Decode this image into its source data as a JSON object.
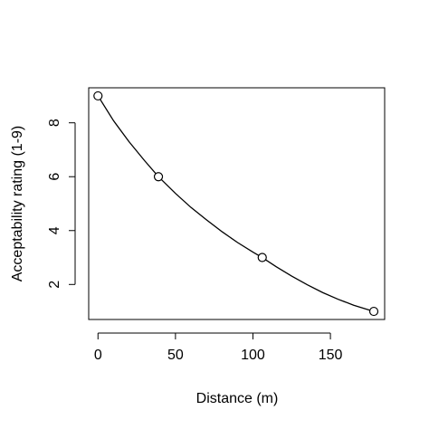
{
  "chart_data": {
    "type": "scatter",
    "title": "",
    "xlabel": "Distance (m)",
    "ylabel": "Acceptability rating (1-9)",
    "xlim": [
      -6,
      185
    ],
    "ylim": [
      0.7,
      9.3
    ],
    "xticks": [
      0,
      50,
      100,
      150
    ],
    "yticks": [
      2,
      4,
      6,
      8
    ],
    "xtick_labels": [
      "0",
      "50",
      "100",
      "150"
    ],
    "ytick_labels": [
      "2",
      "4",
      "6",
      "8"
    ],
    "grid": false,
    "legend": "none",
    "points": [
      {
        "x": 0,
        "y": 9
      },
      {
        "x": 39,
        "y": 6
      },
      {
        "x": 106,
        "y": 3
      },
      {
        "x": 178,
        "y": 1
      }
    ],
    "fit_curve": {
      "description": "smooth decreasing curve through points",
      "x": [
        0,
        10,
        20,
        30,
        39,
        50,
        60,
        70,
        80,
        90,
        100,
        106,
        115,
        125,
        135,
        145,
        155,
        165,
        178
      ],
      "y": [
        9,
        8.08,
        7.3,
        6.6,
        6.0,
        5.38,
        4.86,
        4.4,
        3.96,
        3.56,
        3.2,
        3.0,
        2.66,
        2.31,
        1.99,
        1.7,
        1.45,
        1.23,
        1.0
      ]
    },
    "colors": {
      "line": "#000000",
      "marker": "#000000",
      "background": "#ffffff"
    }
  }
}
